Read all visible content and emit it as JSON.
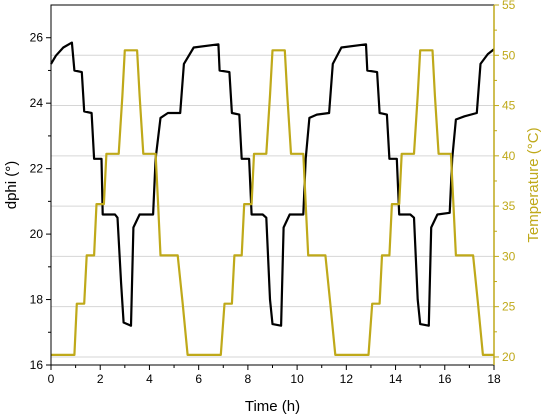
{
  "chart_data": {
    "type": "line",
    "title": "",
    "xlabel": "Time (h)",
    "ylabel_left": "dphi (°)",
    "ylabel_right": "Temperature (°C)",
    "xlim": [
      0,
      18
    ],
    "ylim_left": [
      16,
      27
    ],
    "ylim_right": [
      19.2,
      55
    ],
    "xticks": [
      0,
      2,
      4,
      6,
      8,
      10,
      12,
      14,
      16,
      18
    ],
    "yticks_left": [
      16,
      18,
      20,
      22,
      24,
      26
    ],
    "yticks_right": [
      20,
      25,
      30,
      35,
      40,
      45,
      50,
      55
    ],
    "grid": "horizontal at right-axis ticks",
    "colors": {
      "dphi": "#000000",
      "temperature": "#bfa91a",
      "grid": "#d6d6d6"
    },
    "series": [
      {
        "axis": "left",
        "points": [
          [
            0.0,
            25.2
          ],
          [
            0.2,
            25.45
          ],
          [
            0.5,
            25.7
          ],
          [
            0.85,
            25.85
          ],
          [
            0.95,
            25.0
          ],
          [
            1.25,
            24.95
          ],
          [
            1.35,
            23.75
          ],
          [
            1.65,
            23.7
          ],
          [
            1.75,
            22.3
          ],
          [
            2.05,
            22.3
          ],
          [
            2.1,
            20.6
          ],
          [
            2.6,
            20.6
          ],
          [
            2.7,
            20.5
          ],
          [
            2.85,
            18.5
          ],
          [
            2.95,
            17.3
          ],
          [
            3.25,
            17.2
          ],
          [
            3.35,
            20.2
          ],
          [
            3.6,
            20.6
          ],
          [
            4.15,
            20.6
          ],
          [
            4.25,
            22.3
          ],
          [
            4.45,
            23.55
          ],
          [
            4.75,
            23.7
          ],
          [
            5.25,
            23.7
          ],
          [
            5.4,
            25.2
          ],
          [
            5.8,
            25.7
          ],
          [
            6.8,
            25.8
          ],
          [
            6.85,
            25.0
          ],
          [
            7.25,
            24.95
          ],
          [
            7.35,
            23.7
          ],
          [
            7.65,
            23.65
          ],
          [
            7.75,
            22.3
          ],
          [
            8.05,
            22.3
          ],
          [
            8.15,
            20.6
          ],
          [
            8.6,
            20.6
          ],
          [
            8.75,
            20.5
          ],
          [
            8.9,
            18.0
          ],
          [
            9.0,
            17.25
          ],
          [
            9.35,
            17.2
          ],
          [
            9.45,
            20.2
          ],
          [
            9.7,
            20.6
          ],
          [
            10.25,
            20.6
          ],
          [
            10.35,
            22.3
          ],
          [
            10.5,
            23.55
          ],
          [
            10.8,
            23.65
          ],
          [
            11.3,
            23.7
          ],
          [
            11.45,
            25.2
          ],
          [
            11.8,
            25.7
          ],
          [
            12.8,
            25.8
          ],
          [
            12.85,
            25.0
          ],
          [
            13.25,
            24.95
          ],
          [
            13.35,
            23.7
          ],
          [
            13.65,
            23.65
          ],
          [
            13.75,
            22.3
          ],
          [
            14.05,
            22.3
          ],
          [
            14.15,
            20.6
          ],
          [
            14.6,
            20.6
          ],
          [
            14.75,
            20.5
          ],
          [
            14.9,
            18.0
          ],
          [
            15.0,
            17.25
          ],
          [
            15.35,
            17.2
          ],
          [
            15.45,
            20.2
          ],
          [
            15.7,
            20.6
          ],
          [
            16.2,
            20.65
          ],
          [
            16.3,
            22.3
          ],
          [
            16.45,
            23.5
          ],
          [
            16.8,
            23.6
          ],
          [
            17.3,
            23.7
          ],
          [
            17.45,
            25.2
          ],
          [
            17.75,
            25.5
          ],
          [
            18.0,
            25.65
          ]
        ]
      },
      {
        "axis": "right",
        "points": [
          [
            0.0,
            20.2
          ],
          [
            0.95,
            20.2
          ],
          [
            1.05,
            25.3
          ],
          [
            1.35,
            25.3
          ],
          [
            1.45,
            30.1
          ],
          [
            1.75,
            30.1
          ],
          [
            1.85,
            35.2
          ],
          [
            2.15,
            35.2
          ],
          [
            2.25,
            40.2
          ],
          [
            2.75,
            40.2
          ],
          [
            2.9,
            46.0
          ],
          [
            3.0,
            50.5
          ],
          [
            3.5,
            50.5
          ],
          [
            3.6,
            46.0
          ],
          [
            3.75,
            40.2
          ],
          [
            4.25,
            40.2
          ],
          [
            4.35,
            35.2
          ],
          [
            4.45,
            30.1
          ],
          [
            5.15,
            30.1
          ],
          [
            5.35,
            25.3
          ],
          [
            5.55,
            20.2
          ],
          [
            6.9,
            20.2
          ],
          [
            7.05,
            25.3
          ],
          [
            7.35,
            25.3
          ],
          [
            7.45,
            30.1
          ],
          [
            7.75,
            30.1
          ],
          [
            7.85,
            35.2
          ],
          [
            8.15,
            35.2
          ],
          [
            8.25,
            40.2
          ],
          [
            8.75,
            40.2
          ],
          [
            8.9,
            46.0
          ],
          [
            9.0,
            50.5
          ],
          [
            9.5,
            50.5
          ],
          [
            9.6,
            46.0
          ],
          [
            9.75,
            40.2
          ],
          [
            10.25,
            40.2
          ],
          [
            10.35,
            35.2
          ],
          [
            10.45,
            30.1
          ],
          [
            11.15,
            30.1
          ],
          [
            11.35,
            25.3
          ],
          [
            11.55,
            20.2
          ],
          [
            12.9,
            20.2
          ],
          [
            13.05,
            25.3
          ],
          [
            13.35,
            25.3
          ],
          [
            13.45,
            30.1
          ],
          [
            13.75,
            30.1
          ],
          [
            13.85,
            35.2
          ],
          [
            14.15,
            35.2
          ],
          [
            14.25,
            40.2
          ],
          [
            14.75,
            40.2
          ],
          [
            14.9,
            46.0
          ],
          [
            15.0,
            50.5
          ],
          [
            15.5,
            50.5
          ],
          [
            15.6,
            46.0
          ],
          [
            15.75,
            40.2
          ],
          [
            16.25,
            40.2
          ],
          [
            16.35,
            35.2
          ],
          [
            16.45,
            30.1
          ],
          [
            17.15,
            30.1
          ],
          [
            17.35,
            25.3
          ],
          [
            17.55,
            20.2
          ],
          [
            18.0,
            20.2
          ]
        ]
      }
    ]
  }
}
